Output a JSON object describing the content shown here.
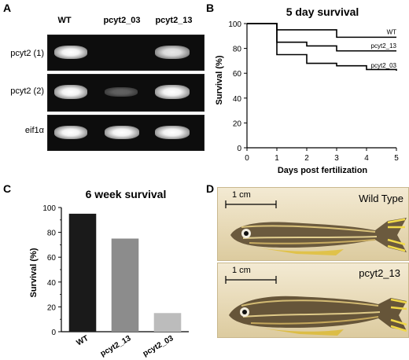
{
  "panel_a": {
    "letter": "A",
    "lanes": [
      "WT",
      "pcyt2_03",
      "pcyt2_13"
    ],
    "rows": [
      {
        "label": "pcyt2 (1)",
        "band_intensity": [
          1.0,
          0.0,
          0.9
        ]
      },
      {
        "label": "pcyt2 (2)",
        "band_intensity": [
          0.9,
          0.35,
          0.9
        ]
      },
      {
        "label": "eif1α",
        "band_intensity": [
          1.0,
          1.0,
          1.0
        ]
      }
    ]
  },
  "panel_b": {
    "letter": "B",
    "chart_data": {
      "type": "line",
      "title": "5 day survival",
      "xlabel": "Days post fertilization",
      "ylabel": "Survival (%)",
      "xlim": [
        0,
        5
      ],
      "ylim": [
        0,
        100
      ],
      "xticks": [
        0,
        1,
        2,
        3,
        4,
        5
      ],
      "yticks": [
        0,
        20,
        40,
        60,
        80,
        100
      ],
      "step": true,
      "series": [
        {
          "name": "WT",
          "x": [
            0,
            1,
            3,
            5
          ],
          "y": [
            100,
            95,
            89,
            89
          ]
        },
        {
          "name": "pcyt2_13",
          "x": [
            0,
            1,
            2,
            3,
            5
          ],
          "y": [
            100,
            85,
            82,
            78,
            78
          ]
        },
        {
          "name": "pcyt2_03",
          "x": [
            0,
            1,
            2,
            3,
            4,
            5
          ],
          "y": [
            100,
            75,
            68,
            66,
            63,
            62
          ]
        }
      ]
    }
  },
  "panel_c": {
    "letter": "C",
    "chart_data": {
      "type": "bar",
      "title": "6 week survival",
      "xlabel": "",
      "ylabel": "Survival (%)",
      "ylim": [
        0,
        100
      ],
      "yticks": [
        0,
        20,
        40,
        60,
        80,
        100
      ],
      "categories": [
        "WT",
        "pcyt2_13",
        "pcyt2_03"
      ],
      "values": [
        95,
        75,
        15
      ],
      "colors": [
        "#1a1a1a",
        "#8c8c8c",
        "#bcbcbc"
      ]
    }
  },
  "panel_d": {
    "letter": "D",
    "photos": [
      {
        "label": "Wild Type",
        "scale": "1 cm"
      },
      {
        "label": "pcyt2_13",
        "scale": "1 cm"
      }
    ]
  }
}
